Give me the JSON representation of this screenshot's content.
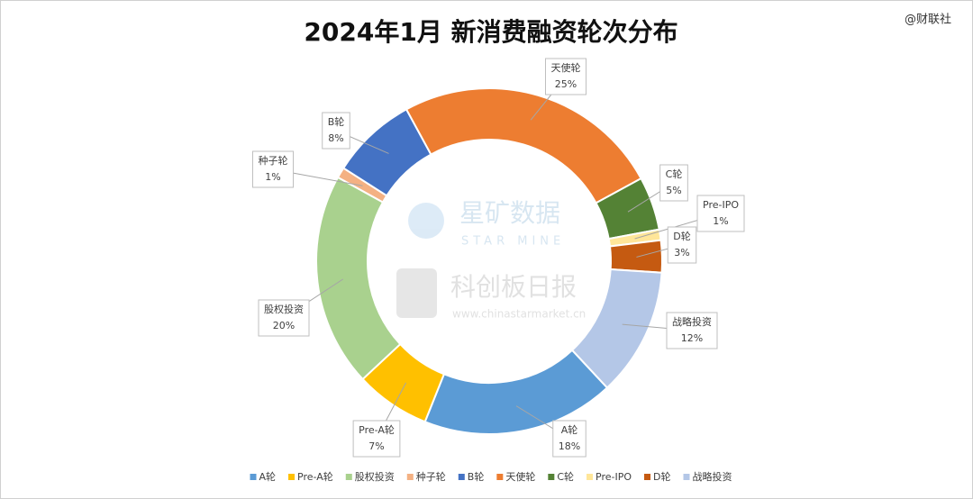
{
  "chart_data": {
    "type": "doughnut",
    "title": "2024年1月 新消费融资轮次分布",
    "categories": [
      "A轮",
      "Pre-A轮",
      "股权投资",
      "种子轮",
      "B轮",
      "天使轮",
      "C轮",
      "Pre-IPO",
      "D轮",
      "战略投资"
    ],
    "values": [
      18,
      7,
      20,
      1,
      8,
      25,
      5,
      1,
      3,
      12
    ],
    "value_labels": [
      "18%",
      "7%",
      "20%",
      "1%",
      "8%",
      "25%",
      "5%",
      "1%",
      "3%",
      "12%"
    ],
    "colors": [
      "#5b9bd5",
      "#ffc000",
      "#a9d18e",
      "#f4b183",
      "#4472c4",
      "#ed7d31",
      "#548235",
      "#ffe699",
      "#c55a11",
      "#b4c7e7"
    ],
    "legend": "bottom"
  },
  "watermark": {
    "source": "@财联社",
    "brand": "星矿数据",
    "brand_en": "STAR MINE",
    "media": "科创板日报",
    "url": "www.chinastarmarket.cn"
  }
}
